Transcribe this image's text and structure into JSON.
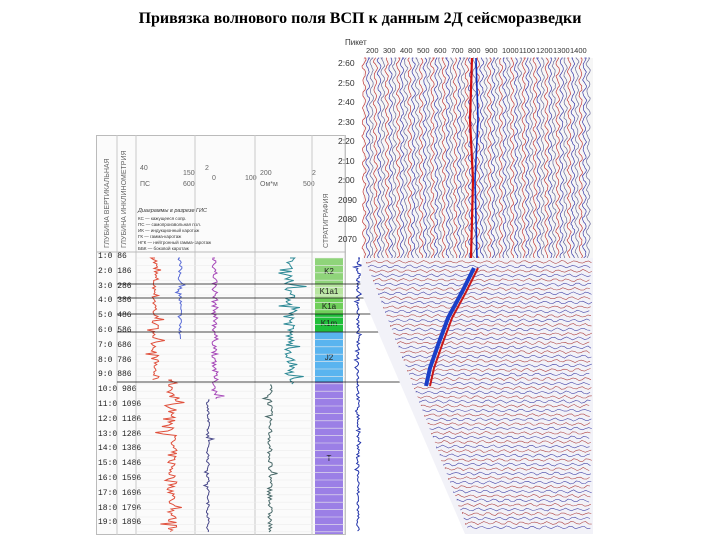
{
  "title": "Привязка волнового поля ВСП к данным 2Д сейсморазведки",
  "well_headers": {
    "col1": "ГЛУБИНА ВЕРТИКАЛЬНАЯ",
    "col2": "ГЛУБИНА ИНКЛИНОМЕТРИЯ",
    "log1_scale": [
      "40",
      "150",
      "2",
      "600"
    ],
    "log1_unit": "ПС",
    "log2_scale": [
      "0",
      "100",
      "2"
    ],
    "log3_scale": [
      "200",
      "2",
      "500"
    ],
    "log3_unit": "Ом*м",
    "strat_header": "СТРАТИГРАФИЯ"
  },
  "legend": {
    "title": "Диаграммы в разрезе ГИС",
    "items": [
      "КС — кажущееся сопр.",
      "ПС — самопроизвольная пол.",
      "ИК — индукционный каротаж",
      "ГК — гамма-каротаж",
      "НГК — нейтронный гамма-каротаж",
      "ББК — боковой каротаж"
    ]
  },
  "depths": [
    [
      "1:0",
      "86"
    ],
    [
      "2:0",
      "186"
    ],
    [
      "3:0",
      "286"
    ],
    [
      "4:0",
      "386"
    ],
    [
      "5:0",
      "486"
    ],
    [
      "6:0",
      "586"
    ],
    [
      "7:0",
      "686"
    ],
    [
      "8:0",
      "786"
    ],
    [
      "9:0",
      "886"
    ],
    [
      "10:0",
      "986"
    ],
    [
      "11:0",
      "1096"
    ],
    [
      "12:0",
      "1186"
    ],
    [
      "13:0",
      "1286"
    ],
    [
      "14:0",
      "1386"
    ],
    [
      "15:0",
      "1486"
    ],
    [
      "16:0",
      "1596"
    ],
    [
      "17:0",
      "1696"
    ],
    [
      "18:0",
      "1796"
    ],
    [
      "19:0",
      "1896"
    ]
  ],
  "strat_units": [
    {
      "label": "K2",
      "color": "#8fd47a"
    },
    {
      "label": "K1a1",
      "color": "#b8e6a0"
    },
    {
      "label": "K1a",
      "color": "#6fcf5a"
    },
    {
      "label": "K1m",
      "color": "#1fbf3a"
    },
    {
      "label": "J2",
      "color": "#5ab4ef"
    },
    {
      "label": "T",
      "color": "#9b7fe6"
    }
  ],
  "seismic": {
    "header_label": "Пикет",
    "traces": [
      "200",
      "300",
      "400",
      "500",
      "600",
      "700",
      "800",
      "900",
      "1000",
      "1100",
      "1200",
      "1300",
      "1400"
    ],
    "times": [
      "2:60",
      "2:50",
      "2:40",
      "2:30",
      "2:20",
      "2:10",
      "2:00",
      "2090",
      "2080",
      "2070"
    ]
  }
}
